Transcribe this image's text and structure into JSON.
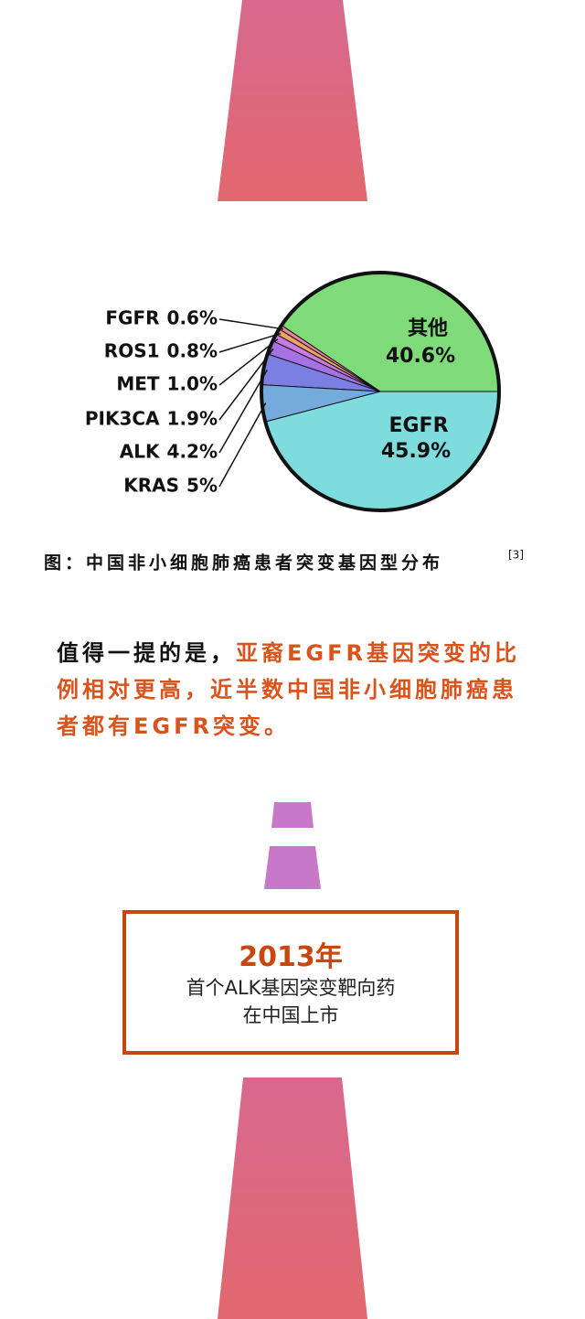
{
  "chart_data": {
    "type": "pie",
    "categories": [
      "其他",
      "FGFR",
      "ROS1",
      "MET",
      "PIK3CA",
      "ALK",
      "KRAS",
      "EGFR"
    ],
    "values": [
      40.6,
      0.6,
      0.8,
      1.0,
      1.9,
      4.2,
      5,
      45.9
    ],
    "value_labels": [
      "40.6%",
      "0.6%",
      "0.8%",
      "1.0%",
      "1.9%",
      "4.2%",
      "5%",
      "45.9%"
    ],
    "colors": [
      "#7fdb7a",
      "#e9869a",
      "#eca36a",
      "#c97be0",
      "#a671e2",
      "#7b7fe2",
      "#74abdc",
      "#7fdcdc"
    ],
    "caption": "图：中国非小细胞肺癌患者突变基因型分布",
    "caption_ref": "[3]"
  },
  "note": {
    "plain": "值得一提的是，",
    "highlight": "亚裔EGFR基因突变的比例相对更高，近半数中国非小细胞肺癌患者都有EGFR突变。"
  },
  "milestone": {
    "year": "2013年",
    "line1": "首个ALK基因突变靶向药",
    "line2": "在中国上市"
  }
}
